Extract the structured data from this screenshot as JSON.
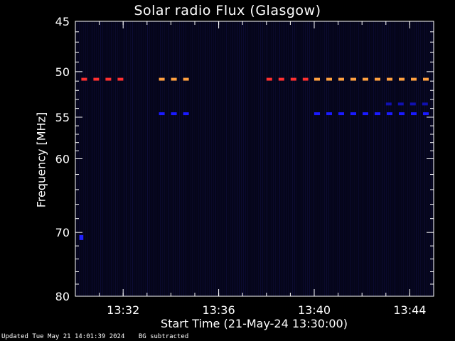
{
  "chart_data": {
    "type": "heatmap",
    "title": "Solar radio Flux (Glasgow)",
    "xlabel": "Start Time (21-May-24 13:30:00)",
    "ylabel": "Frequency [MHz]",
    "x_ticks": [
      "13:32",
      "13:36",
      "13:40",
      "13:44"
    ],
    "y_ticks": [
      45,
      50,
      55,
      60,
      70,
      80
    ],
    "xlim": [
      "13:30:00",
      "13:45:00"
    ],
    "ylim": [
      45,
      80
    ],
    "y_scale": "log",
    "series": [
      {
        "freq_mhz": 50.8,
        "color": "#ff3030",
        "x_start": "13:30:15",
        "x_end": "13:32:15"
      },
      {
        "freq_mhz": 50.8,
        "color": "#ffa040",
        "x_start": "13:33:30",
        "x_end": "13:34:45"
      },
      {
        "freq_mhz": 50.8,
        "color": "#ff3030",
        "x_start": "13:38:00",
        "x_end": "13:39:45"
      },
      {
        "freq_mhz": 50.8,
        "color": "#ffa040",
        "x_start": "13:40:00",
        "x_end": "13:45:00"
      },
      {
        "freq_mhz": 54.6,
        "color": "#1a1aff",
        "x_start": "13:33:30",
        "x_end": "13:34:45"
      },
      {
        "freq_mhz": 54.6,
        "color": "#1a1aff",
        "x_start": "13:40:00",
        "x_end": "13:45:00"
      },
      {
        "freq_mhz": 53.5,
        "color": "#1010b0",
        "x_start": "13:43:00",
        "x_end": "13:45:00"
      },
      {
        "freq_mhz": 70.7,
        "color": "#2020ff",
        "x_start": "13:30:10",
        "x_end": "13:30:20"
      }
    ],
    "background_color": "#05051a",
    "grid": false
  },
  "footer": {
    "updated": "Updated Tue May 21 14:01:39 2024",
    "note": "BG subtracted"
  }
}
